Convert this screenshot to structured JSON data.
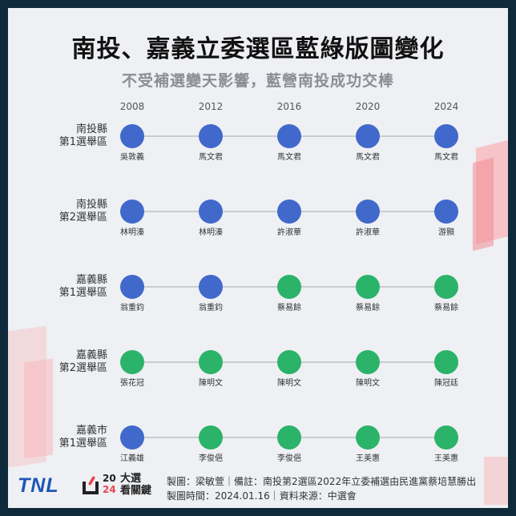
{
  "header": {
    "title": "南投、嘉義立委選區藍綠版圖變化",
    "subtitle": "不受補選變天影響，藍營南投成功交棒"
  },
  "colors": {
    "kmt": "#4169cc",
    "dpp": "#2bb36a"
  },
  "years": [
    "2008",
    "2012",
    "2016",
    "2020",
    "2024"
  ],
  "rows": [
    {
      "label1": "南投縣",
      "label2": "第1選舉區",
      "cells": [
        {
          "name": "吳敦義",
          "party": "kmt"
        },
        {
          "name": "馬文君",
          "party": "kmt"
        },
        {
          "name": "馬文君",
          "party": "kmt"
        },
        {
          "name": "馬文君",
          "party": "kmt"
        },
        {
          "name": "馬文君",
          "party": "kmt"
        }
      ]
    },
    {
      "label1": "南投縣",
      "label2": "第2選舉區",
      "cells": [
        {
          "name": "林明溱",
          "party": "kmt"
        },
        {
          "name": "林明溱",
          "party": "kmt"
        },
        {
          "name": "許淑華",
          "party": "kmt"
        },
        {
          "name": "許淑華",
          "party": "kmt"
        },
        {
          "name": "游顥",
          "party": "kmt"
        }
      ]
    },
    {
      "label1": "嘉義縣",
      "label2": "第1選舉區",
      "cells": [
        {
          "name": "翁重鈞",
          "party": "kmt"
        },
        {
          "name": "翁重鈞",
          "party": "kmt"
        },
        {
          "name": "蔡易餘",
          "party": "dpp"
        },
        {
          "name": "蔡易餘",
          "party": "dpp"
        },
        {
          "name": "蔡易餘",
          "party": "dpp"
        }
      ]
    },
    {
      "label1": "嘉義縣",
      "label2": "第2選舉區",
      "cells": [
        {
          "name": "張花冠",
          "party": "dpp"
        },
        {
          "name": "陳明文",
          "party": "dpp"
        },
        {
          "name": "陳明文",
          "party": "dpp"
        },
        {
          "name": "陳明文",
          "party": "dpp"
        },
        {
          "name": "陳冠廷",
          "party": "dpp"
        }
      ]
    },
    {
      "label1": "嘉義市",
      "label2": "第1選舉區",
      "cells": [
        {
          "name": "江義雄",
          "party": "kmt"
        },
        {
          "name": "李俊俋",
          "party": "dpp"
        },
        {
          "name": "李俊俋",
          "party": "dpp"
        },
        {
          "name": "王美惠",
          "party": "dpp"
        },
        {
          "name": "王美惠",
          "party": "dpp"
        }
      ]
    }
  ],
  "footer": {
    "line1": "製圖：梁敏萱｜備註：南投第2選區2022年立委補選由民進黨蔡培慧勝出",
    "line2": "製圖時間：2024.01.16｜資料來源：中選會",
    "logo_tnl": "TNL",
    "logo_20": "20",
    "logo_24": "24",
    "logo_line1": "大選",
    "logo_line2": "看關鍵"
  }
}
